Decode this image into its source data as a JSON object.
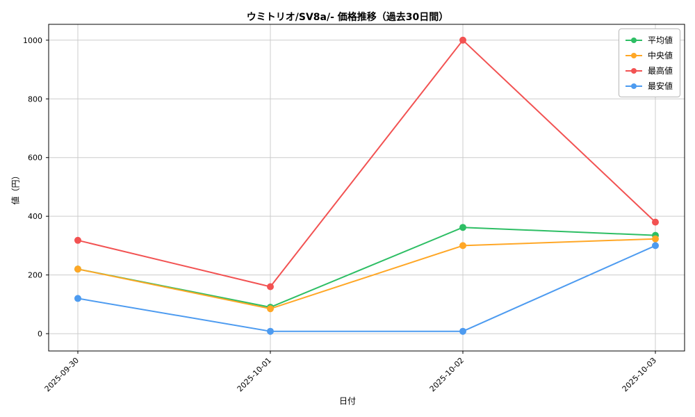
{
  "chart": {
    "title": "ウミトリオ/SV8a/- 価格推移（過去30日間）",
    "xlabel": "日付",
    "ylabel": "値（円）"
  },
  "chart_data": {
    "type": "line",
    "title": "ウミトリオ/SV8a/- 価格推移（過去30日間）",
    "xlabel": "日付",
    "ylabel": "値（円）",
    "categories": [
      "2025-09-30",
      "2025-10-01",
      "2025-10-02",
      "2025-10-03"
    ],
    "series": [
      {
        "name": "平均値",
        "color": "#2dbe64",
        "values": [
          220,
          90,
          362,
          335
        ]
      },
      {
        "name": "中央値",
        "color": "#ffa726",
        "values": [
          220,
          85,
          300,
          323
        ]
      },
      {
        "name": "最高値",
        "color": "#f25252",
        "values": [
          318,
          160,
          1000,
          380
        ]
      },
      {
        "name": "最安値",
        "color": "#4d9bf0",
        "values": [
          120,
          8,
          8,
          300
        ]
      }
    ],
    "yticks": [
      0,
      200,
      400,
      600,
      800,
      1000
    ],
    "ylim": [
      -59,
      1054
    ],
    "grid": true,
    "legend_position": "top-right",
    "legend_entries": [
      "平均値",
      "中央値",
      "最高値",
      "最安値"
    ],
    "grid_color": "#cccccc",
    "axis_color": "#000000"
  }
}
